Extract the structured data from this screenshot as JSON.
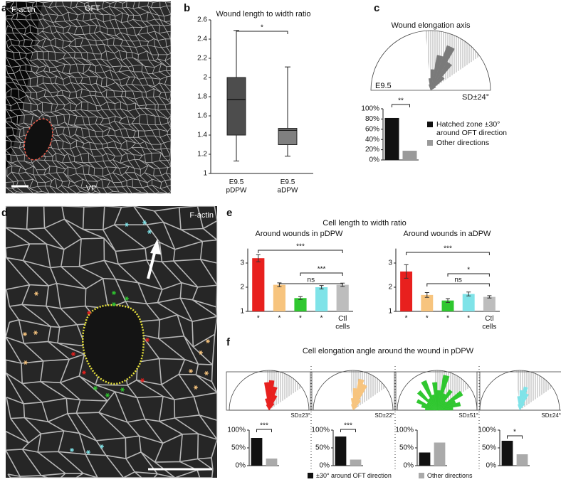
{
  "figure": {
    "letters": [
      "a",
      "b",
      "c",
      "d",
      "e",
      "f"
    ],
    "image_labels": [
      "F-actin",
      "OFT",
      "VP",
      "F-actin"
    ],
    "e_title": "Cell length to width ratio",
    "f_title": "Cell elongation angle around the wound in pDPW",
    "f_legend": [
      "±30° around OFT direction",
      "Other directions"
    ]
  },
  "chart_data": [
    {
      "type": "box",
      "title": "Wound length to width ratio",
      "categories": [
        "E9.5\npDPW",
        "E9.5\naDPW"
      ],
      "min": [
        1.13,
        1.18
      ],
      "q1": [
        1.4,
        1.3
      ],
      "median": [
        1.77,
        1.45
      ],
      "q3": [
        2.0,
        1.47
      ],
      "max": [
        2.49,
        2.11
      ],
      "colors": [
        "#4d4d4d",
        "#808080"
      ],
      "ylim": [
        1,
        2.6
      ],
      "yticks": [
        1,
        1.2,
        1.4,
        1.6,
        1.8,
        2,
        2.2,
        2.4,
        2.6
      ],
      "annotations": [
        "*"
      ]
    },
    {
      "type": "rose",
      "title": "Wound elongation axis",
      "x": [
        5,
        15,
        25,
        35,
        45,
        55,
        65,
        75,
        85,
        95,
        105,
        115,
        125,
        135,
        145,
        155,
        165,
        175
      ],
      "values": [
        0,
        0,
        0,
        0.1,
        0.3,
        0.55,
        0.8,
        0.6,
        0.35,
        0.2,
        0.1,
        0,
        0,
        0,
        0,
        0,
        0,
        0
      ],
      "color": "#7a7a7a",
      "rlim": [
        0,
        1
      ],
      "hatch": [
        35,
        95
      ],
      "labels": [
        "E9.5",
        "SD±24°"
      ]
    },
    {
      "type": "bar",
      "categories": [
        null,
        null
      ],
      "values": [
        82,
        18
      ],
      "colors": [
        "#111111",
        "#9a9a9a"
      ],
      "ylim": [
        0,
        100
      ],
      "yticks": [
        {
          "value": 0,
          "label": "0%"
        },
        {
          "value": 20,
          "label": "20%"
        },
        {
          "value": 40,
          "label": "40%"
        },
        {
          "value": 60,
          "label": "60%"
        },
        {
          "value": 80,
          "label": "80%"
        },
        {
          "value": 100,
          "label": "100%"
        }
      ],
      "annotations": [
        "**"
      ],
      "legend": [
        "Hatched zone ±30°\naround OFT direction",
        "Other directions"
      ]
    },
    {
      "type": "bar",
      "title": "Around wounds in pDPW",
      "categories": [
        "*",
        "*",
        "*",
        "*",
        "Ctl\ncells"
      ],
      "values": [
        3.2,
        2.1,
        1.55,
        2.0,
        2.1
      ],
      "errors": [
        0.15,
        0.08,
        0.06,
        0.07,
        0.07
      ],
      "colors": [
        "#e8201e",
        "#f7c47e",
        "#2fc72f",
        "#7fe3e8",
        "#bdbdbd"
      ],
      "label_colors": [
        "#e8201e",
        "#f0a848",
        "#2fc72f",
        "#55cfd6",
        "#000000"
      ],
      "ylim": [
        1,
        3.6
      ],
      "yticks": [
        1,
        2,
        3
      ],
      "annotations": [
        "***",
        "***",
        "ns"
      ]
    },
    {
      "type": "bar",
      "title": "Around wounds in aDPW",
      "categories": [
        "*",
        "*",
        "*",
        "*",
        "Ctl\ncells"
      ],
      "values": [
        2.65,
        1.68,
        1.45,
        1.72,
        1.6
      ],
      "errors": [
        0.28,
        0.1,
        0.08,
        0.08,
        0.05
      ],
      "colors": [
        "#e8201e",
        "#f7c47e",
        "#2fc72f",
        "#7fe3e8",
        "#bdbdbd"
      ],
      "label_colors": [
        "#e8201e",
        "#f0a848",
        "#2fc72f",
        "#55cfd6",
        "#000000"
      ],
      "ylim": [
        1,
        3.6
      ],
      "yticks": [
        1,
        2,
        3
      ],
      "annotations": [
        "***",
        "*",
        "ns"
      ]
    },
    {
      "type": "rose",
      "x": [
        5,
        15,
        25,
        35,
        45,
        55,
        65,
        75,
        85,
        95,
        105,
        115,
        125,
        135,
        145,
        155,
        165,
        175
      ],
      "values": [
        0,
        0,
        0,
        0,
        0,
        0.2,
        0.4,
        0.6,
        0.75,
        0.7,
        0.3,
        0.15,
        0,
        0,
        0,
        0,
        0,
        0
      ],
      "color": "#e8201e",
      "rlim": [
        0,
        1
      ],
      "hatch": [
        35,
        95
      ],
      "labels": [
        "SD±23°"
      ]
    },
    {
      "type": "rose",
      "x": [
        5,
        15,
        25,
        35,
        45,
        55,
        65,
        75,
        85,
        95,
        105,
        115,
        125,
        135,
        145,
        155,
        165,
        175
      ],
      "values": [
        0,
        0,
        0,
        0,
        0.15,
        0.3,
        0.7,
        0.8,
        0.55,
        0.3,
        0.15,
        0,
        0,
        0,
        0,
        0,
        0,
        0
      ],
      "color": "#f7c47e",
      "rlim": [
        0,
        1
      ],
      "hatch": [
        35,
        95
      ],
      "labels": [
        "SD±22°"
      ]
    },
    {
      "type": "rose",
      "x": [
        5,
        15,
        25,
        35,
        45,
        55,
        65,
        75,
        85,
        95,
        105,
        115,
        125,
        135,
        145,
        155,
        165,
        175
      ],
      "values": [
        0.4,
        0.6,
        0.5,
        0.75,
        0.3,
        0.6,
        0.45,
        0.9,
        0.5,
        0.7,
        0.4,
        0.8,
        0.35,
        0.65,
        0.3,
        0.55,
        0.4,
        0.3
      ],
      "color": "#2fc72f",
      "rlim": [
        0,
        1
      ],
      "hatch": [
        35,
        95
      ],
      "labels": [
        "SD±51°"
      ]
    },
    {
      "type": "rose",
      "x": [
        5,
        15,
        25,
        35,
        45,
        55,
        65,
        75,
        85,
        95,
        105,
        115,
        125,
        135,
        145,
        155,
        165,
        175
      ],
      "values": [
        0,
        0,
        0,
        0,
        0,
        0.2,
        0.45,
        0.6,
        0.5,
        0.35,
        0.15,
        0,
        0,
        0,
        0,
        0,
        0,
        0
      ],
      "color": "#7fe3e8",
      "rlim": [
        0,
        1
      ],
      "hatch": [
        35,
        95
      ],
      "labels": [
        "SD±24°"
      ]
    },
    {
      "type": "bar",
      "categories": [
        null,
        null
      ],
      "values": [
        78,
        20
      ],
      "colors": [
        "#111111",
        "#aaaaaa"
      ],
      "ylim": [
        0,
        100
      ],
      "yticks": [
        {
          "value": 0,
          "label": "0%"
        },
        {
          "value": 50,
          "label": "50%"
        },
        {
          "value": 100,
          "label": "100%"
        }
      ],
      "annotations": [
        "***"
      ]
    },
    {
      "type": "bar",
      "categories": [
        null,
        null
      ],
      "values": [
        82,
        17
      ],
      "colors": [
        "#111111",
        "#aaaaaa"
      ],
      "ylim": [
        0,
        100
      ],
      "yticks": [
        {
          "value": 0,
          "label": "0%"
        },
        {
          "value": 50,
          "label": "50%"
        },
        {
          "value": 100,
          "label": "100%"
        }
      ],
      "annotations": [
        "***"
      ]
    },
    {
      "type": "bar",
      "categories": [
        null,
        null
      ],
      "values": [
        37,
        65
      ],
      "colors": [
        "#111111",
        "#aaaaaa"
      ],
      "ylim": [
        0,
        100
      ],
      "yticks": [
        {
          "value": 0,
          "label": "0%"
        },
        {
          "value": 50,
          "label": "50%"
        },
        {
          "value": 100,
          "label": "100%"
        }
      ]
    },
    {
      "type": "bar",
      "categories": [
        null,
        null
      ],
      "values": [
        70,
        32
      ],
      "colors": [
        "#111111",
        "#aaaaaa"
      ],
      "ylim": [
        0,
        100
      ],
      "yticks": [
        {
          "value": 0,
          "label": "0%"
        },
        {
          "value": 50,
          "label": "50%"
        },
        {
          "value": 100,
          "label": "100%"
        }
      ],
      "annotations": [
        "*"
      ]
    }
  ]
}
